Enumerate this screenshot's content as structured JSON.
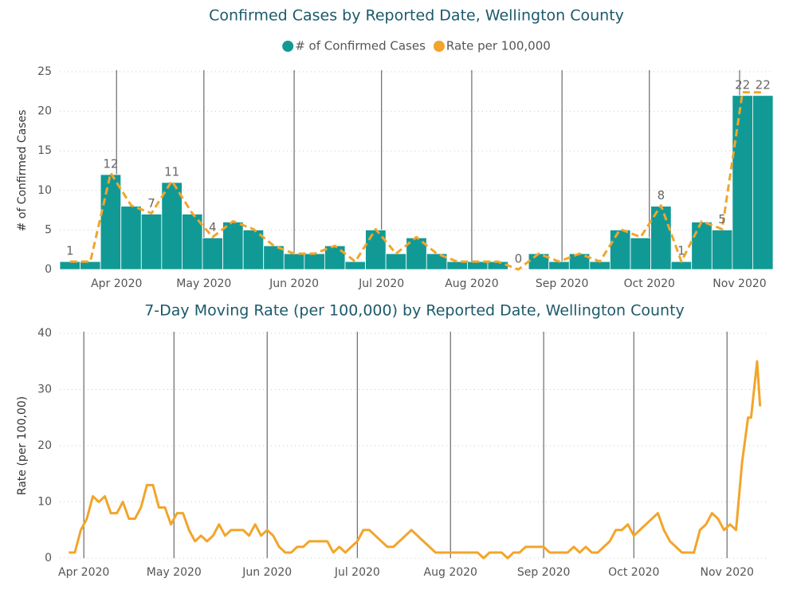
{
  "chart_data": [
    {
      "type": "bar",
      "title": "Confirmed Cases by Reported Date, Wellington County",
      "ylabel": "# of Confirmed Cases",
      "legend": "top",
      "x": [
        76,
        83,
        90,
        97,
        104,
        111,
        118,
        125,
        132,
        139,
        146,
        153,
        160,
        167,
        174,
        181,
        188,
        195,
        202,
        209,
        216,
        223,
        230,
        237,
        244,
        251,
        258,
        265,
        272,
        279,
        286,
        293,
        300,
        307,
        314
      ],
      "xlim": [
        72.5,
        317.5
      ],
      "xticks": [
        {
          "value": 92,
          "label": "Apr 2020"
        },
        {
          "value": 122,
          "label": "May 2020"
        },
        {
          "value": 153,
          "label": "Jun 2020"
        },
        {
          "value": 183,
          "label": "Jul 2020"
        },
        {
          "value": 214,
          "label": "Aug 2020"
        },
        {
          "value": 245,
          "label": "Sep 2020"
        },
        {
          "value": 275,
          "label": "Oct 2020"
        },
        {
          "value": 306,
          "label": "Nov 2020"
        }
      ],
      "ylim": [
        0,
        25
      ],
      "yticks": [
        0,
        5,
        10,
        15,
        20,
        25
      ],
      "grid": true,
      "series": [
        {
          "name": "# of Confirmed Cases",
          "color": "#119a95",
          "values": [
            1,
            1,
            12,
            8,
            7,
            11,
            7,
            4,
            6,
            5,
            3,
            2,
            2,
            3,
            1,
            5,
            2,
            4,
            2,
            1,
            1,
            1,
            0,
            2,
            1,
            2,
            1,
            5,
            4,
            8,
            1,
            6,
            5,
            22,
            22
          ],
          "value_labels": [
            "1",
            null,
            "12",
            null,
            "7",
            "11",
            null,
            "4",
            null,
            null,
            null,
            null,
            null,
            null,
            null,
            null,
            null,
            null,
            null,
            null,
            null,
            null,
            "0",
            null,
            null,
            null,
            null,
            null,
            null,
            "8",
            "1",
            null,
            "5",
            "22",
            "22"
          ]
        },
        {
          "name": "Rate per 100,000",
          "type": "line",
          "dashed": true,
          "color": "#f2a52b",
          "values": [
            1.0,
            1.0,
            12.2,
            8.1,
            7.1,
            11.2,
            7.1,
            4.1,
            6.1,
            5.1,
            3.0,
            2.0,
            2.0,
            3.0,
            1.0,
            5.1,
            2.0,
            4.1,
            2.0,
            1.0,
            1.0,
            1.0,
            0,
            2.0,
            1.0,
            2.0,
            1.0,
            5.1,
            4.1,
            8.1,
            1.0,
            6.1,
            5.1,
            22.4,
            22.4
          ]
        }
      ]
    },
    {
      "type": "line",
      "title": "7-Day Moving Rate (per 100,000) by Reported Date, Wellington County",
      "ylabel": "Rate (per 100,00)",
      "x": [
        87,
        89,
        91,
        93,
        95,
        97,
        99,
        101,
        103,
        105,
        107,
        109,
        111,
        113,
        115,
        117,
        119,
        121,
        123,
        125,
        127,
        129,
        131,
        133,
        135,
        137,
        139,
        141,
        143,
        145,
        147,
        149,
        151,
        153,
        155,
        157,
        159,
        161,
        163,
        165,
        167,
        169,
        171,
        173,
        175,
        177,
        179,
        181,
        183,
        185,
        187,
        189,
        191,
        193,
        195,
        197,
        199,
        201,
        203,
        205,
        207,
        209,
        211,
        213,
        215,
        217,
        219,
        221,
        223,
        225,
        227,
        229,
        231,
        233,
        235,
        237,
        239,
        241,
        243,
        245,
        247,
        249,
        251,
        253,
        255,
        257,
        259,
        261,
        263,
        265,
        267,
        269,
        271,
        273,
        275,
        277,
        279,
        281,
        283,
        285,
        287,
        289,
        291,
        293,
        295,
        297,
        299,
        301,
        303,
        305,
        307,
        309,
        311,
        313,
        314,
        315,
        316,
        317
      ],
      "xlim": [
        84,
        320
      ],
      "xticks": [
        {
          "value": 92,
          "label": "Apr 2020"
        },
        {
          "value": 122,
          "label": "May 2020"
        },
        {
          "value": 153,
          "label": "Jun 2020"
        },
        {
          "value": 183,
          "label": "Jul 2020"
        },
        {
          "value": 214,
          "label": "Aug 2020"
        },
        {
          "value": 245,
          "label": "Sep 2020"
        },
        {
          "value": 275,
          "label": "Oct 2020"
        },
        {
          "value": 306,
          "label": "Nov 2020"
        }
      ],
      "ylim": [
        0,
        40
      ],
      "yticks": [
        0,
        10,
        20,
        30,
        40
      ],
      "grid": true,
      "series": [
        {
          "name": "7-Day Moving Rate",
          "color": "#f2a52b",
          "values": [
            1,
            1,
            5,
            7,
            11,
            10,
            11,
            8,
            8,
            10,
            7,
            7,
            9,
            13,
            13,
            9,
            9,
            6,
            8,
            8,
            5,
            3,
            4,
            3,
            4,
            6,
            4,
            5,
            5,
            5,
            4,
            6,
            4,
            5,
            4,
            2,
            1,
            1,
            2,
            2,
            3,
            3,
            3,
            3,
            1,
            2,
            1,
            2,
            3,
            5,
            5,
            4,
            3,
            2,
            2,
            3,
            4,
            5,
            4,
            3,
            2,
            1,
            1,
            1,
            1,
            1,
            1,
            1,
            1,
            0,
            1,
            1,
            1,
            0,
            1,
            1,
            2,
            2,
            2,
            2,
            1,
            1,
            1,
            1,
            2,
            1,
            2,
            1,
            1,
            2,
            3,
            5,
            5,
            6,
            4,
            5,
            6,
            7,
            8,
            5,
            3,
            2,
            1,
            1,
            1,
            5,
            6,
            8,
            7,
            5,
            6,
            5,
            17,
            25,
            25,
            30,
            35,
            27
          ]
        }
      ]
    }
  ]
}
